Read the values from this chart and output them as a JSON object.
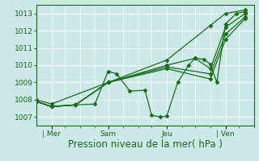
{
  "title": "",
  "xlabel": "Pression niveau de la mer( hPa )",
  "bg_color": "#cce8e8",
  "grid_color": "#b0d8d8",
  "line_color": "#1a6b1a",
  "spine_color": "#1a6b1a",
  "ylim": [
    1006.5,
    1013.5
  ],
  "yticks": [
    1007,
    1008,
    1009,
    1010,
    1011,
    1012,
    1013
  ],
  "xlim": [
    0,
    1.0
  ],
  "xtick_labels": [
    "| Mer",
    "Sam",
    "Jeu",
    "| Ven"
  ],
  "xtick_positions": [
    0.07,
    0.33,
    0.6,
    0.87
  ],
  "minor_xticks": [
    0.13,
    0.2,
    0.27,
    0.4,
    0.47,
    0.53,
    0.67,
    0.73,
    0.8,
    0.93,
    1.0
  ],
  "series": [
    [
      0.0,
      1008.0,
      0.07,
      1007.75,
      0.33,
      1009.0,
      0.6,
      1010.3,
      0.8,
      1012.3,
      0.87,
      1013.0,
      0.96,
      1013.2
    ],
    [
      0.0,
      1007.9,
      0.07,
      1007.6,
      0.18,
      1007.7,
      0.27,
      1007.75,
      0.33,
      1009.65,
      0.37,
      1009.5,
      0.43,
      1008.5,
      0.5,
      1008.55,
      0.53,
      1007.1,
      0.57,
      1007.0,
      0.6,
      1007.05,
      0.65,
      1009.0,
      0.7,
      1010.0,
      0.73,
      1010.4,
      0.77,
      1010.35,
      0.8,
      1010.05,
      0.83,
      1009.0,
      0.87,
      1012.4,
      0.92,
      1013.0,
      0.96,
      1013.1
    ],
    [
      0.0,
      1007.9,
      0.07,
      1007.6,
      0.18,
      1007.7,
      0.33,
      1009.0,
      0.6,
      1010.0,
      0.73,
      1010.4,
      0.8,
      1009.8,
      0.87,
      1012.2,
      0.96,
      1013.0
    ],
    [
      0.0,
      1007.9,
      0.07,
      1007.6,
      0.18,
      1007.7,
      0.33,
      1009.0,
      0.6,
      1009.9,
      0.8,
      1009.5,
      0.87,
      1011.8,
      0.96,
      1012.8
    ],
    [
      0.0,
      1007.9,
      0.07,
      1007.6,
      0.18,
      1007.7,
      0.33,
      1009.0,
      0.6,
      1009.8,
      0.8,
      1009.2,
      0.87,
      1011.5,
      0.96,
      1012.7
    ]
  ],
  "marker": "D",
  "markersize": 2.5,
  "linewidth": 0.9,
  "fontsize_xlabel": 8.5,
  "fontsize_ytick": 6.5,
  "fontsize_xtick": 6.5
}
